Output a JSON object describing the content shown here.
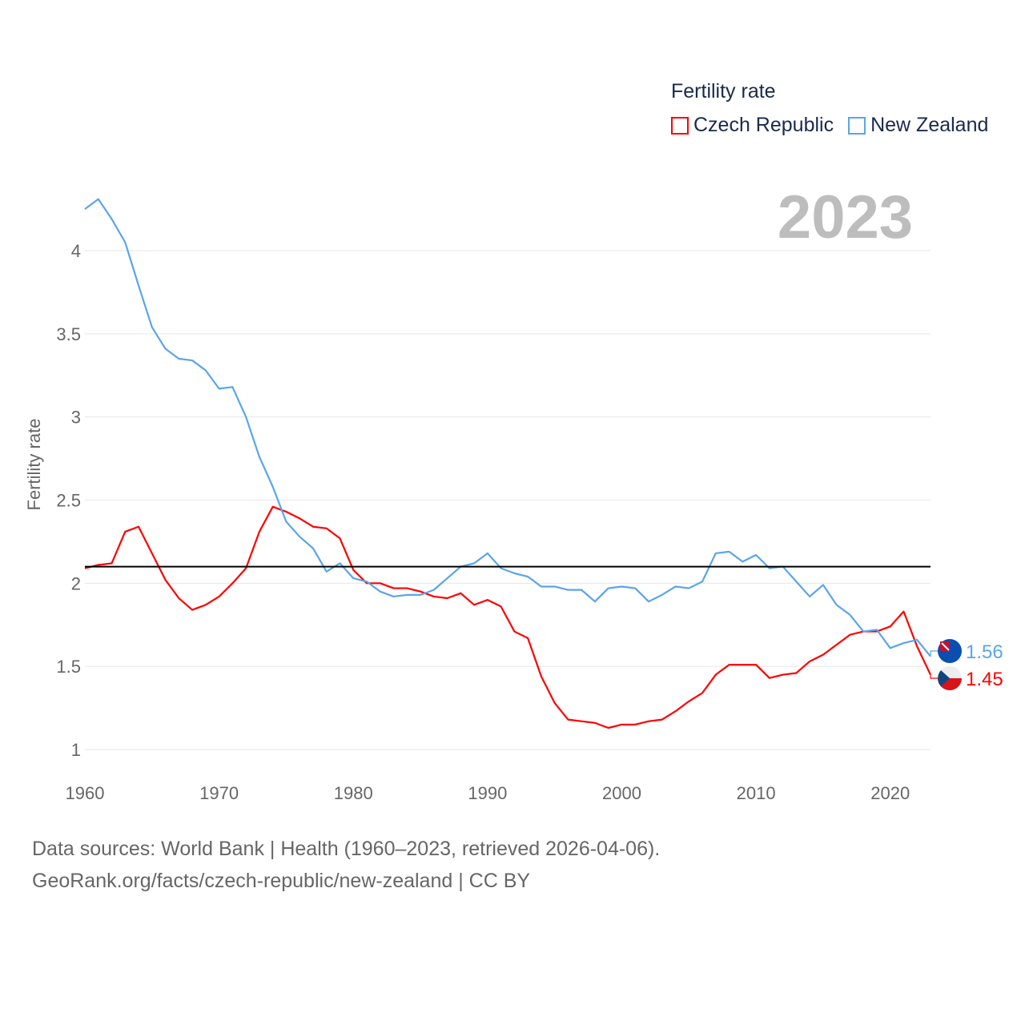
{
  "legend": {
    "title": "Fertility rate",
    "items": [
      {
        "label": "Czech Republic",
        "color": "#ff0000"
      },
      {
        "label": "New Zealand",
        "color": "#5aa5ea"
      }
    ]
  },
  "current_year": "2023",
  "footer": {
    "line1": "Data sources: World Bank | Health (1960–2023, retrieved 2026-04-06).",
    "line2": "GeoRank.org/facts/czech-republic/new-zealand | CC BY"
  },
  "chart_data": {
    "type": "line",
    "title": "Fertility rate",
    "xlabel": "",
    "ylabel": "Fertility rate",
    "xlim": [
      1960,
      2023
    ],
    "ylim": [
      0.85,
      4.45
    ],
    "x_ticks": [
      "1960",
      "1970",
      "1980",
      "1990",
      "2000",
      "2010",
      "2020"
    ],
    "y_ticks": [
      "1",
      "1.5",
      "2",
      "2.5",
      "3",
      "3.5",
      "4"
    ],
    "grid": true,
    "legend_position": "top-right",
    "reference_line": {
      "y": 2.1,
      "color": "#000000"
    },
    "x": [
      1960,
      1961,
      1962,
      1963,
      1964,
      1965,
      1966,
      1967,
      1968,
      1969,
      1970,
      1971,
      1972,
      1973,
      1974,
      1975,
      1976,
      1977,
      1978,
      1979,
      1980,
      1981,
      1982,
      1983,
      1984,
      1985,
      1986,
      1987,
      1988,
      1989,
      1990,
      1991,
      1992,
      1993,
      1994,
      1995,
      1996,
      1997,
      1998,
      1999,
      2000,
      2001,
      2002,
      2003,
      2004,
      2005,
      2006,
      2007,
      2008,
      2009,
      2010,
      2011,
      2012,
      2013,
      2014,
      2015,
      2016,
      2017,
      2018,
      2019,
      2020,
      2021,
      2022,
      2023
    ],
    "series": [
      {
        "name": "Czech Republic",
        "color": "#ff0000",
        "end_label": "1.45",
        "values": [
          2.09,
          2.11,
          2.12,
          2.31,
          2.34,
          2.18,
          2.02,
          1.91,
          1.84,
          1.87,
          1.92,
          2.0,
          2.09,
          2.31,
          2.46,
          2.43,
          2.39,
          2.34,
          2.33,
          2.27,
          2.08,
          2.0,
          2.0,
          1.97,
          1.97,
          1.95,
          1.92,
          1.91,
          1.94,
          1.87,
          1.9,
          1.86,
          1.71,
          1.67,
          1.44,
          1.28,
          1.18,
          1.17,
          1.16,
          1.13,
          1.15,
          1.15,
          1.17,
          1.18,
          1.23,
          1.29,
          1.34,
          1.45,
          1.51,
          1.51,
          1.51,
          1.43,
          1.45,
          1.46,
          1.53,
          1.57,
          1.63,
          1.69,
          1.71,
          1.71,
          1.74,
          1.83,
          1.62,
          1.45
        ]
      },
      {
        "name": "New Zealand",
        "color": "#5aa5ea",
        "end_label": "1.56",
        "values": [
          4.25,
          4.31,
          4.19,
          4.05,
          3.79,
          3.54,
          3.41,
          3.35,
          3.34,
          3.28,
          3.17,
          3.18,
          3.0,
          2.76,
          2.58,
          2.37,
          2.28,
          2.21,
          2.07,
          2.12,
          2.03,
          2.01,
          1.95,
          1.92,
          1.93,
          1.93,
          1.96,
          2.03,
          2.1,
          2.12,
          2.18,
          2.09,
          2.06,
          2.04,
          1.98,
          1.98,
          1.96,
          1.96,
          1.89,
          1.97,
          1.98,
          1.97,
          1.89,
          1.93,
          1.98,
          1.97,
          2.01,
          2.18,
          2.19,
          2.13,
          2.17,
          2.09,
          2.1,
          2.01,
          1.92,
          1.99,
          1.87,
          1.81,
          1.71,
          1.72,
          1.61,
          1.64,
          1.66,
          1.56
        ]
      }
    ]
  }
}
